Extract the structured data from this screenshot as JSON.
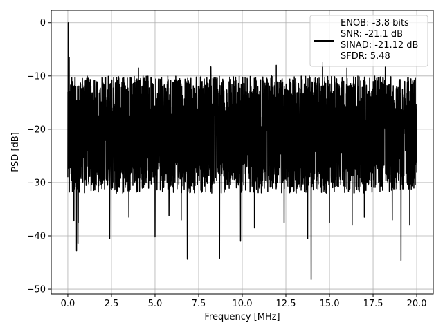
{
  "chart_data": {
    "type": "line",
    "title": "",
    "xlabel": "Frequency [MHz]",
    "ylabel": "PSD [dB]",
    "xlim": [
      -0.95,
      20.95
    ],
    "ylim": [
      -50.9,
      2.3
    ],
    "xticks": [
      0.0,
      2.5,
      5.0,
      7.5,
      10.0,
      12.5,
      15.0,
      17.5,
      20.0
    ],
    "xtick_labels": [
      "0.0",
      "2.5",
      "5.0",
      "7.5",
      "10.0",
      "12.5",
      "15.0",
      "17.5",
      "20.0"
    ],
    "yticks": [
      0,
      -10,
      -20,
      -30,
      -40,
      -50
    ],
    "ytick_labels": [
      "0",
      "−10",
      "−20",
      "−30",
      "−40",
      "−50"
    ],
    "grid": true,
    "legend_position": "top-right",
    "legend": [
      "ENOB: -3.8 bits",
      "SNR: -21.1 dB",
      "SINAD: -21.12 dB",
      "SFDR: 5.48"
    ],
    "series": [
      {
        "color": "#000000",
        "x_range": [
          0.0,
          20.0
        ],
        "noise_band_center_db": -20,
        "noise_band_top_db": -9,
        "noise_band_bottom_db": -30,
        "peaks": [
          {
            "x": 0.02,
            "y": 0.0
          },
          {
            "x": 0.08,
            "y": -6.5
          },
          {
            "x": 0.12,
            "y": -15.5
          }
        ],
        "deep_notches": [
          {
            "x": 0.35,
            "y": -37.2
          },
          {
            "x": 0.5,
            "y": -42.8
          },
          {
            "x": 0.58,
            "y": -41.5
          },
          {
            "x": 0.6,
            "y": -37.5
          },
          {
            "x": 2.4,
            "y": -40.5
          },
          {
            "x": 3.5,
            "y": -36.5
          },
          {
            "x": 5.0,
            "y": -40.2
          },
          {
            "x": 5.8,
            "y": -36.2
          },
          {
            "x": 6.5,
            "y": -37.0
          },
          {
            "x": 6.85,
            "y": -44.4
          },
          {
            "x": 8.7,
            "y": -44.2
          },
          {
            "x": 9.9,
            "y": -41.0
          },
          {
            "x": 10.7,
            "y": -38.5
          },
          {
            "x": 12.4,
            "y": -37.5
          },
          {
            "x": 13.75,
            "y": -40.5
          },
          {
            "x": 13.95,
            "y": -48.2
          },
          {
            "x": 15.0,
            "y": -37.5
          },
          {
            "x": 16.3,
            "y": -38.0
          },
          {
            "x": 17.0,
            "y": -36.5
          },
          {
            "x": 18.6,
            "y": -37.0
          },
          {
            "x": 19.1,
            "y": -44.6
          },
          {
            "x": 19.6,
            "y": -38.0
          }
        ],
        "high_spikes": [
          {
            "x": 4.05,
            "y": -8.5
          },
          {
            "x": 8.2,
            "y": -8.3
          },
          {
            "x": 11.95,
            "y": -8.0
          },
          {
            "x": 14.6,
            "y": -7.4
          },
          {
            "x": 16.0,
            "y": -8.5
          },
          {
            "x": 18.2,
            "y": -8.3
          }
        ]
      }
    ]
  }
}
